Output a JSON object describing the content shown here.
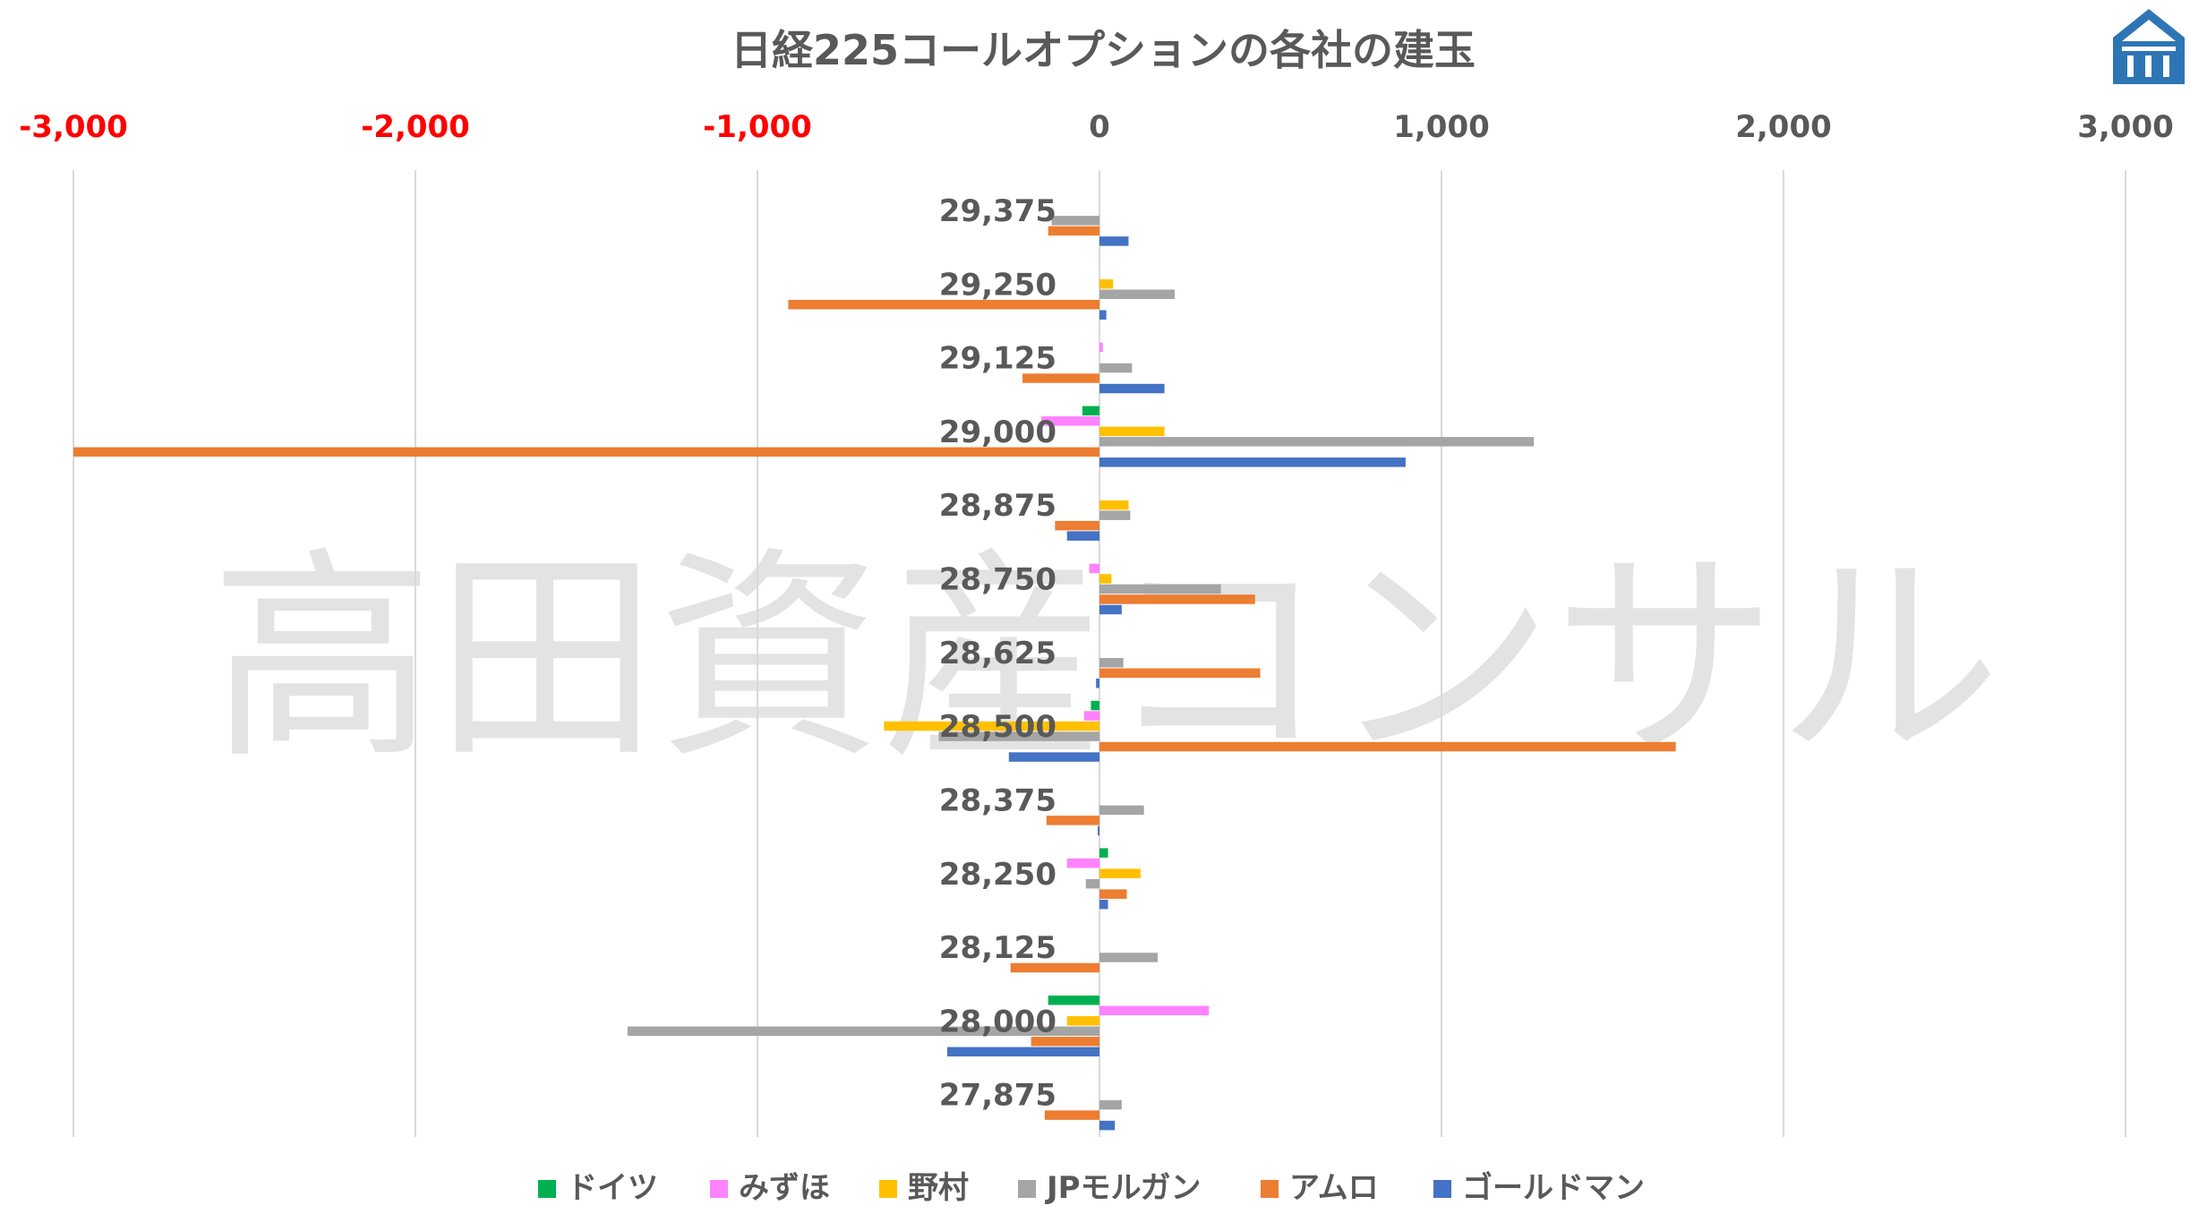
{
  "watermark": "高田資産コンサル",
  "logo": {
    "name": "roof-logo-icon",
    "color": "#2e75b6"
  },
  "chart_data": {
    "type": "bar",
    "orientation": "horizontal",
    "title": "日経225コールオプションの各社の建玉",
    "xlim": [
      -3000,
      3000
    ],
    "x_ticks": [
      -3000,
      -2000,
      -1000,
      0,
      1000,
      2000,
      3000
    ],
    "x_tick_labels": [
      "-3,000",
      "-2,000",
      "-1,000",
      "0",
      "1,000",
      "2,000",
      "3,000"
    ],
    "negative_tick_color": "#ff0000",
    "positive_tick_color": "#595959",
    "grid": true,
    "legend_position": "bottom",
    "categories": [
      "29,375",
      "29,250",
      "29,125",
      "29,000",
      "28,875",
      "28,750",
      "28,625",
      "28,500",
      "28,375",
      "28,250",
      "28,125",
      "28,000",
      "27,875"
    ],
    "series": [
      {
        "name": "ドイツ",
        "color": "#00b050",
        "values": [
          0,
          0,
          0,
          -50,
          0,
          0,
          0,
          -25,
          0,
          25,
          0,
          -150,
          0
        ]
      },
      {
        "name": "みずほ",
        "color": "#ff82ff",
        "values": [
          0,
          0,
          10,
          -170,
          0,
          -30,
          0,
          -45,
          0,
          -95,
          0,
          320,
          0
        ]
      },
      {
        "name": "野村",
        "color": "#ffc000",
        "values": [
          0,
          40,
          0,
          190,
          85,
          35,
          0,
          -630,
          0,
          120,
          0,
          -95,
          0
        ]
      },
      {
        "name": "JPモルガン",
        "color": "#a5a5a5",
        "values": [
          -140,
          220,
          95,
          1270,
          90,
          355,
          70,
          -470,
          130,
          -40,
          170,
          -1380,
          65
        ]
      },
      {
        "name": "アムロ",
        "color": "#ed7d31",
        "values": [
          -150,
          -910,
          -225,
          -3000,
          -130,
          455,
          470,
          1685,
          -155,
          80,
          -260,
          -200,
          -160
        ]
      },
      {
        "name": "ゴールドマン",
        "color": "#4472c4",
        "values": [
          85,
          20,
          190,
          895,
          -95,
          65,
          -10,
          -265,
          -5,
          25,
          0,
          -445,
          45
        ]
      }
    ]
  }
}
